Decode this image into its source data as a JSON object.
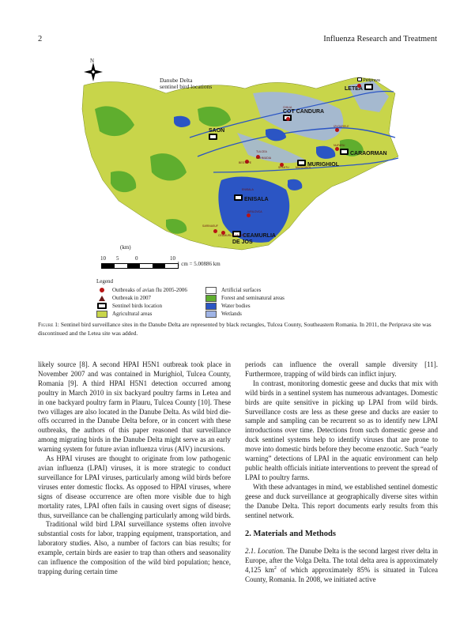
{
  "header": {
    "page_number": "2",
    "journal": "Influenza Research and Treatment"
  },
  "map": {
    "title_line1": "Danube Delta",
    "title_line2": "sentinel bird locations",
    "north_label": "N",
    "sites": [
      "LETEA",
      "Periprava",
      "COT CANDURA",
      "SAON",
      "CARAORMAN",
      "MURIGHIOL",
      "ENISALA",
      "CEAMURLIA DE JOS"
    ],
    "outbreak_labels": [
      "CHILIA",
      "TULCEA",
      "IZVOARELE",
      "NUFARU",
      "BESTEPE",
      "MAHMUDIA",
      "SFANTU",
      "MURIGHIOL",
      "JURILOVCA",
      "SARINASUF",
      "CEAMURLIA DE JOS",
      "ENISALA"
    ],
    "scale_unit": "(km)",
    "scale_ticks": [
      "10",
      "5",
      "0",
      "10"
    ],
    "scale_note": "1 cm = 5.00886 km",
    "colors": {
      "agricultural": "#c8d54a",
      "forest": "#5fae2e",
      "water": "#2b55c4",
      "wetlands": "#9fb4e6",
      "artificial": "#ffffff",
      "outbreak": "#b81414"
    }
  },
  "legend": {
    "title": "Legend",
    "left": [
      {
        "symbol": "dot",
        "label": "Outbreaks of avian flu 2005-2006"
      },
      {
        "symbol": "triangle",
        "label": "Outbreak in 2007"
      },
      {
        "symbol": "rect",
        "label": "Sentinel birds location"
      },
      {
        "symbol": "agricultural",
        "label": "Agricultural areas"
      }
    ],
    "right": [
      {
        "symbol": "artificial",
        "label": "Artificial surfaces"
      },
      {
        "symbol": "forest",
        "label": "Forest and seminatural areas"
      },
      {
        "symbol": "water",
        "label": "Water bodies"
      },
      {
        "symbol": "wetlands",
        "label": "Wetlands"
      }
    ]
  },
  "caption": {
    "label": "Figure 1:",
    "text": "Sentinel bird surveillance sites in the Danube Delta are represented by black rectangles, Tulcea County, Southeastern Romania. In 2011, the Periprava site was discontinued and the Letea site was added."
  },
  "left_column": {
    "p1": "likely source [8]. A second HPAI H5N1 outbreak took place in November 2007 and was contained in Murighiol, Tulcea County, Romania [9]. A third HPAI H5N1 detection occurred among poultry in March 2010 in six backyard poultry farms in Letea and in one backyard poultry farm in Plauru, Tulcea County [10]. These two villages are also located in the Danube Delta. As wild bird die-offs occurred in the Danube Delta before, or in concert with these outbreaks, the authors of this paper reasoned that surveillance among migrating birds in the Danube Delta might serve as an early warning system for future avian influenza virus (AIV) incursions.",
    "p2": "As HPAI viruses are thought to originate from low pathogenic avian influenza (LPAI) viruses, it is more strategic to conduct surveillance for LPAI viruses, particularly among wild birds before viruses enter domestic flocks. As opposed to HPAI viruses, where signs of disease occurrence are often more visible due to high mortality rates, LPAI often fails in causing overt signs of disease; thus, surveillance can be challenging particularly among wild birds.",
    "p3": "Traditional wild bird LPAI surveillance systems often involve substantial costs for labor, trapping equipment, transportation, and laboratory studies. Also, a number of factors can bias results; for example, certain birds are easier to trap than others and seasonality can influence the composition of the wild bird population; hence, trapping during certain time"
  },
  "right_column": {
    "p1": "periods can influence the overall sample diversity [11]. Furthermore, trapping of wild birds can inflict injury.",
    "p2": "In contrast, monitoring domestic geese and ducks that mix with wild birds in a sentinel system has numerous advantages. Domestic birds are quite sensitive in picking up LPAI from wild birds. Surveillance costs are less as these geese and ducks are easier to sample and sampling can be recurrent so as to identify new LPAI introductions over time. Detections from such domestic geese and duck sentinel systems help to identify viruses that are prone to move into domestic birds before they become enzootic. Such “early warning” detections of LPAI in the aquatic environment can help public health officials initiate interventions to prevent the spread of LPAI to poultry farms.",
    "p3": "With these advantages in mind, we established sentinel domestic geese and duck surveillance at geographically diverse sites within the Danube Delta. This report documents early results from this sentinel network.",
    "section_heading": "2. Materials and Methods",
    "sub_title": "2.1. Location.",
    "p4_a": " The Danube Delta is the second largest river delta in Europe, after the Volga Delta. The total delta area is approximately 4,125 km",
    "p4_sup": "2",
    "p4_b": " of which approximately 85% is situated in Tulcea County, Romania. In 2008, we initiated active"
  }
}
